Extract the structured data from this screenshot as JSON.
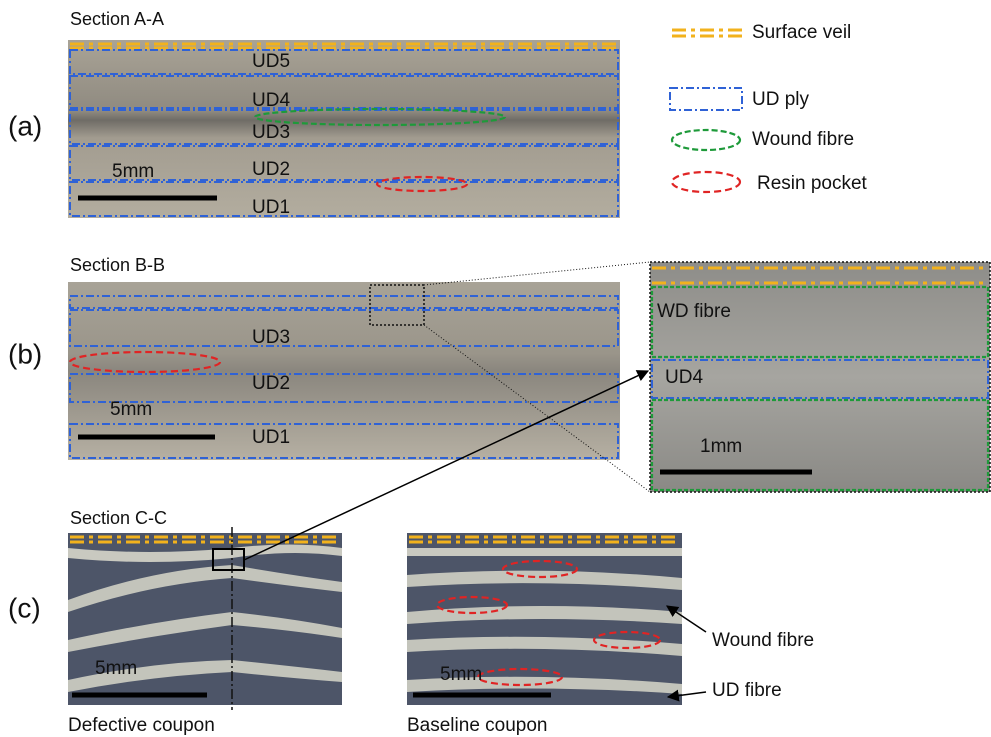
{
  "panels": [
    {
      "label": "(a)",
      "title": "Section A-A",
      "plies": [
        "UD5",
        "UD4",
        "UD3",
        "UD2",
        "UD1"
      ],
      "scale": "5mm"
    },
    {
      "label": "(b)",
      "title": "Section B-B",
      "plies": [
        "UD3",
        "UD2",
        "UD1"
      ],
      "scale": "5mm",
      "inset": {
        "labels": [
          "WD fibre",
          "UD4"
        ],
        "scale": "1mm"
      }
    },
    {
      "label": "(c)",
      "title": "Section C-C",
      "images": [
        {
          "caption": "Defective coupon",
          "scale": "5mm"
        },
        {
          "caption": "Baseline coupon",
          "scale": "5mm"
        }
      ],
      "annotations": [
        "Wound fibre",
        "UD fibre"
      ]
    }
  ],
  "legend": [
    "Surface veil",
    "UD ply",
    "Wound fibre",
    "Resin pocket"
  ]
}
